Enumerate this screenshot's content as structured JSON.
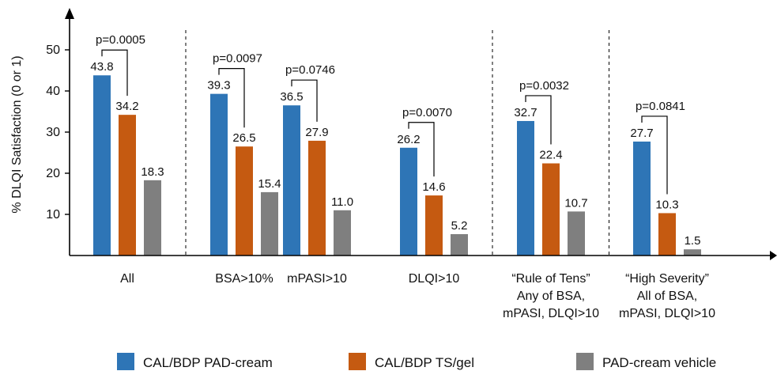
{
  "chart_data": {
    "type": "bar",
    "ylabel": "% DLQI Satisfaction (0 or 1)",
    "ylim": [
      0,
      55
    ],
    "yticks": [
      10,
      20,
      30,
      40,
      50
    ],
    "grid": false,
    "legend_position": "bottom",
    "categories": [
      [
        "All"
      ],
      [
        "BSA>10%"
      ],
      [
        "mPASI>10"
      ],
      [
        "DLQI>10"
      ],
      [
        "“Rule of Tens”",
        "Any of BSA,",
        "mPASI, DLQI>10"
      ],
      [
        "“High Severity”",
        "All of BSA,",
        "mPASI, DLQI>10"
      ]
    ],
    "series": [
      {
        "name": "CAL/BDP PAD-cream",
        "color": "#2e75b6",
        "values": [
          43.8,
          39.3,
          36.5,
          26.2,
          32.7,
          27.7
        ],
        "labels": [
          "43.8",
          "39.3",
          "36.5",
          "26.2",
          "32.7",
          "27.7"
        ]
      },
      {
        "name": "CAL/BDP TS/gel",
        "color": "#c55a11",
        "values": [
          34.2,
          26.5,
          27.9,
          14.6,
          22.4,
          10.3
        ],
        "labels": [
          "34.2",
          "26.5",
          "27.9",
          "14.6",
          "22.4",
          "10.3"
        ]
      },
      {
        "name": "PAD-cream vehicle",
        "color": "#7f7f7f",
        "values": [
          18.3,
          15.4,
          11.0,
          5.2,
          10.7,
          1.5
        ],
        "labels": [
          "18.3",
          "15.4",
          "11.0",
          "5.2",
          "10.7",
          "1.5"
        ]
      }
    ],
    "p_values": [
      "p=0.0005",
      "p=0.0097",
      "p=0.0746",
      "p=0.0070",
      "p=0.0032",
      "p=0.0841"
    ],
    "dividers_after_groups": [
      0,
      3,
      4
    ]
  }
}
